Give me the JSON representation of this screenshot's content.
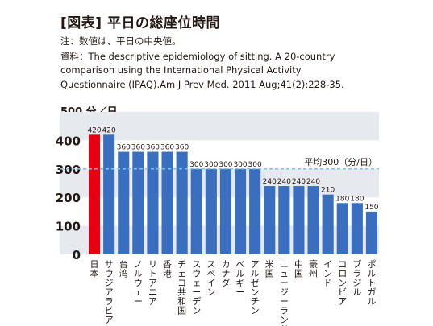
{
  "title": "[図表] 平日の総座位時間",
  "note": "注：数値は、平日の中央値。",
  "source_lines": [
    "資料：The descriptive epidemiology of sitting. A 20-country",
    "comparison using the International Physical Activity",
    "Questionnaire (IPAQ).Am J Prev Med. 2011 Aug;41(2):228-35."
  ],
  "colors": {
    "highlight_bar": "#e60012",
    "bar": "#3a6fc0",
    "band": "#e6e9ee",
    "average_line": "#7fc3e8",
    "text": "#231815"
  },
  "chart_data": {
    "type": "bar",
    "title": "",
    "unit_label": "500 分／日",
    "xlabel": "",
    "ylabel": "",
    "ylim": [
      0,
      500
    ],
    "yticks": [
      0,
      100,
      200,
      300,
      400
    ],
    "grid": "alternating horizontal bands",
    "categories": [
      "日本",
      "サウジアラビア",
      "台湾",
      "ノルウェー",
      "リトアニア",
      "香港",
      "チェコ共和国",
      "スウェーデン",
      "スペイン",
      "カナダ",
      "ベルギー",
      "アルゼンチン",
      "米国",
      "ニュージーランド",
      "中国",
      "豪州",
      "インド",
      "コロンビア",
      "ブラジル",
      "ポルトガル"
    ],
    "values": [
      420,
      420,
      360,
      360,
      360,
      360,
      360,
      300,
      300,
      300,
      300,
      300,
      240,
      240,
      240,
      240,
      210,
      180,
      180,
      150
    ],
    "highlight_index": 0,
    "average": {
      "value": 300,
      "label": "平均300（分/日）"
    }
  }
}
